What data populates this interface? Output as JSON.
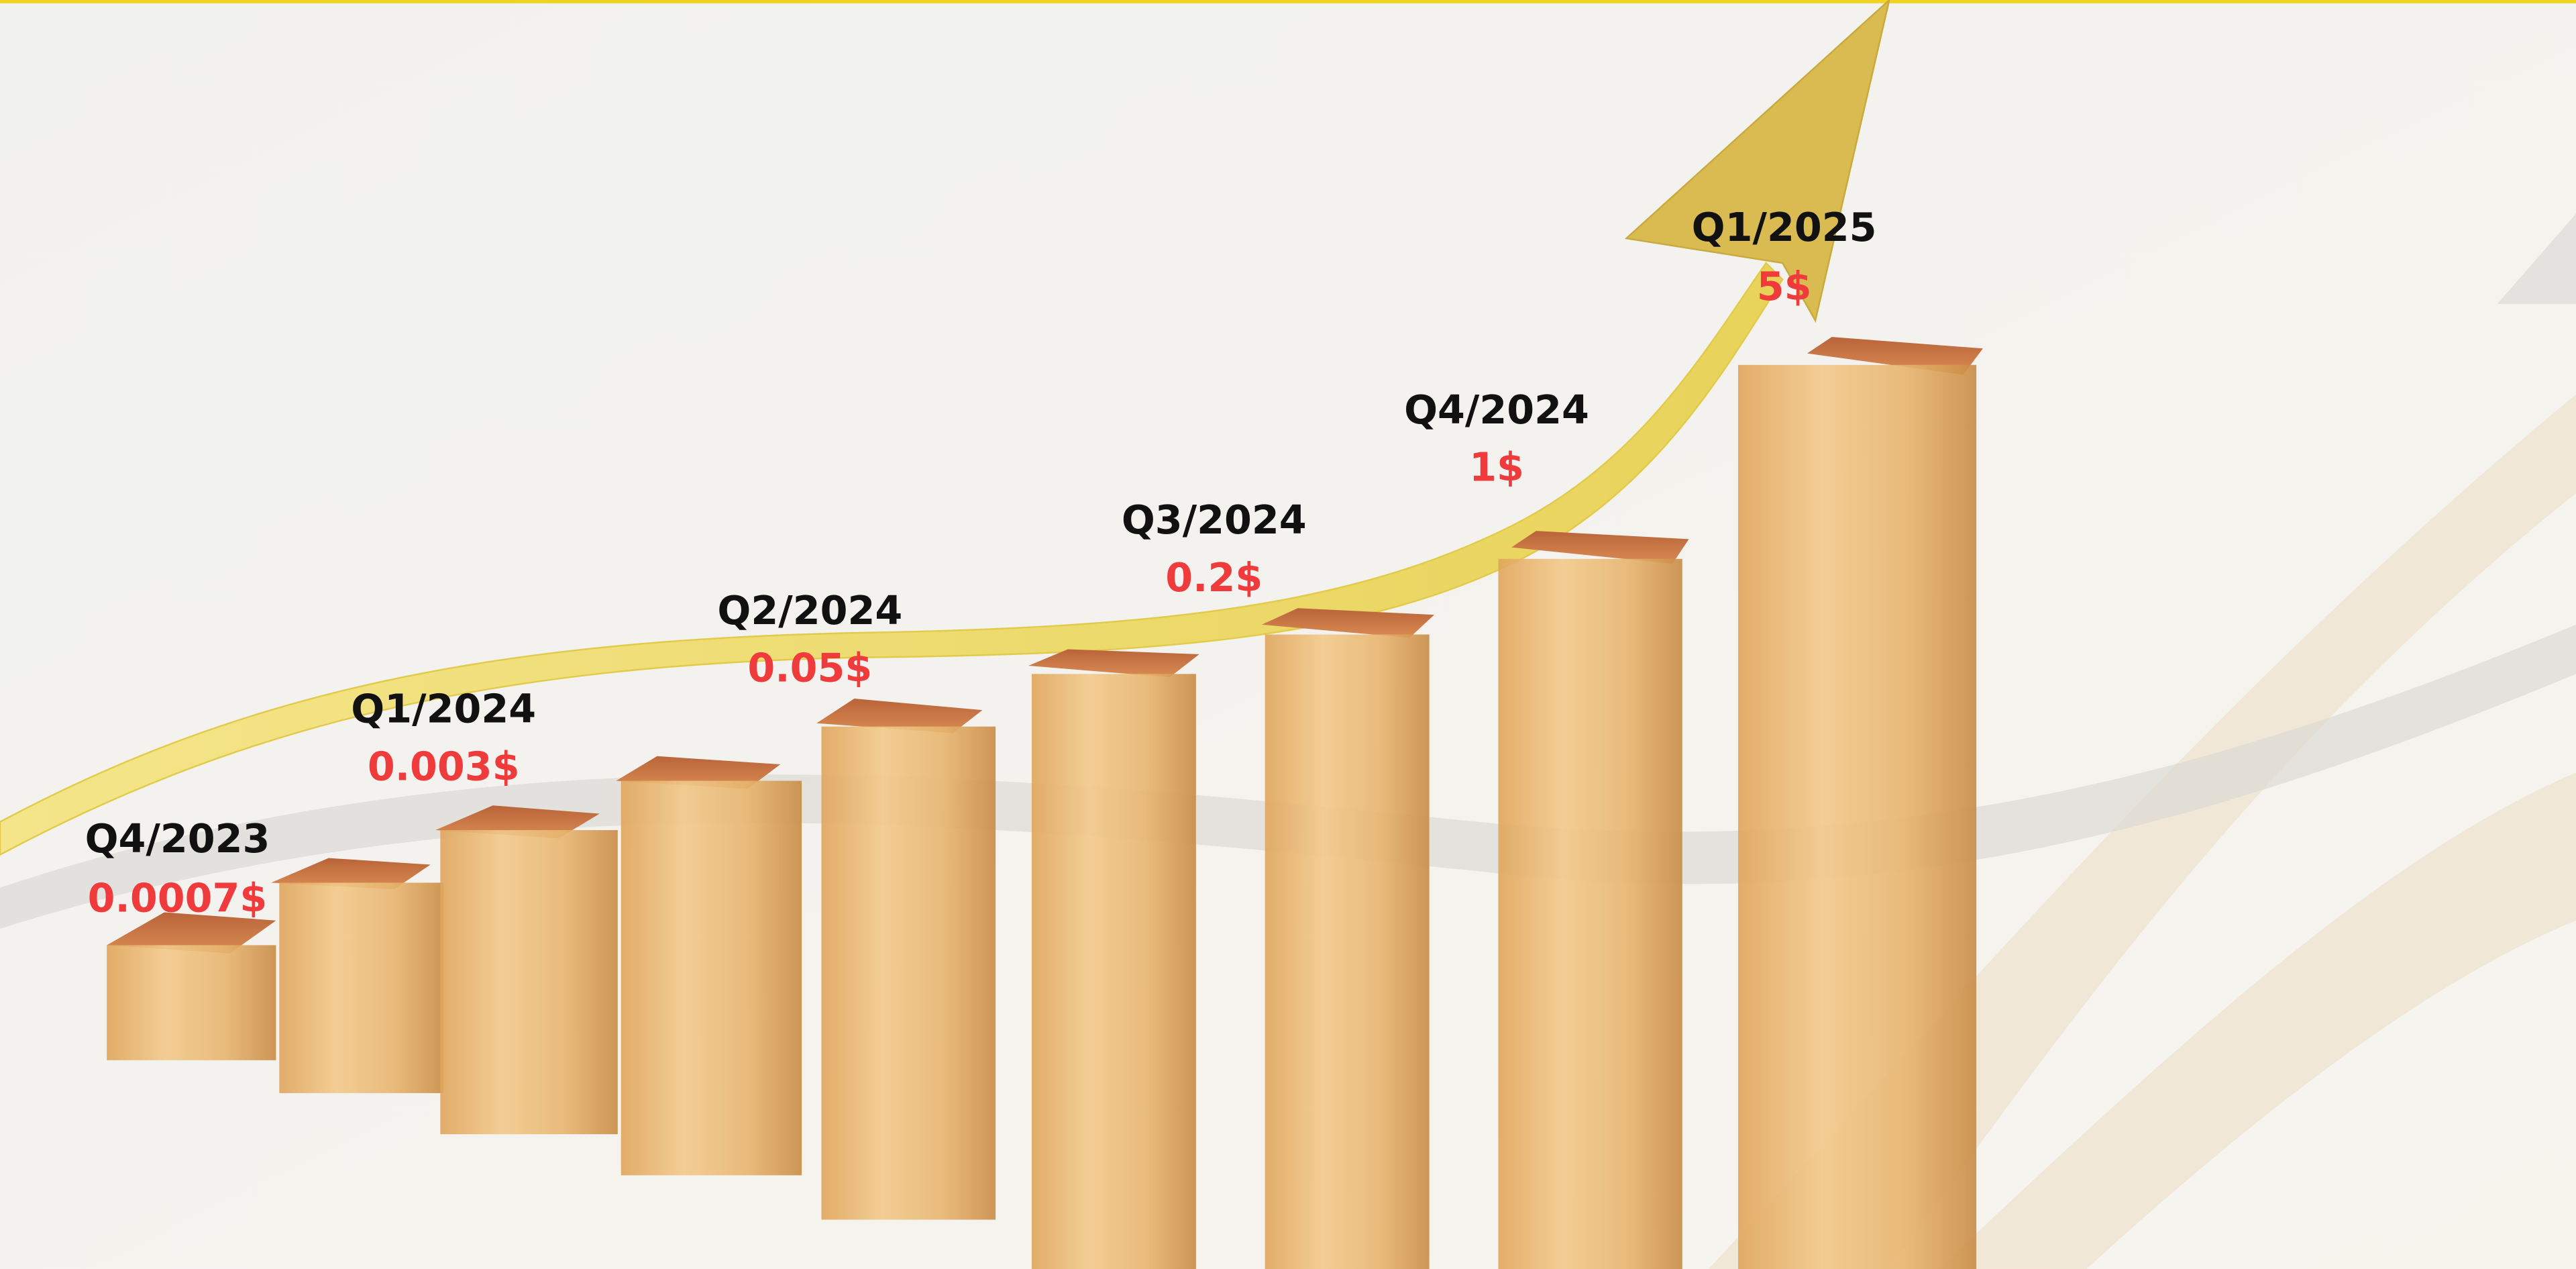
{
  "milestones": [
    {
      "period": "Q4/2023",
      "price": "0.0007$"
    },
    {
      "period": "Q1/2024",
      "price": "0.003$"
    },
    {
      "period": "Q2/2024",
      "price": "0.05$"
    },
    {
      "period": "Q3/2024",
      "price": "0.2$"
    },
    {
      "period": "Q4/2024",
      "price": "1$"
    },
    {
      "period": "Q1/2025",
      "price": "5$"
    }
  ]
}
